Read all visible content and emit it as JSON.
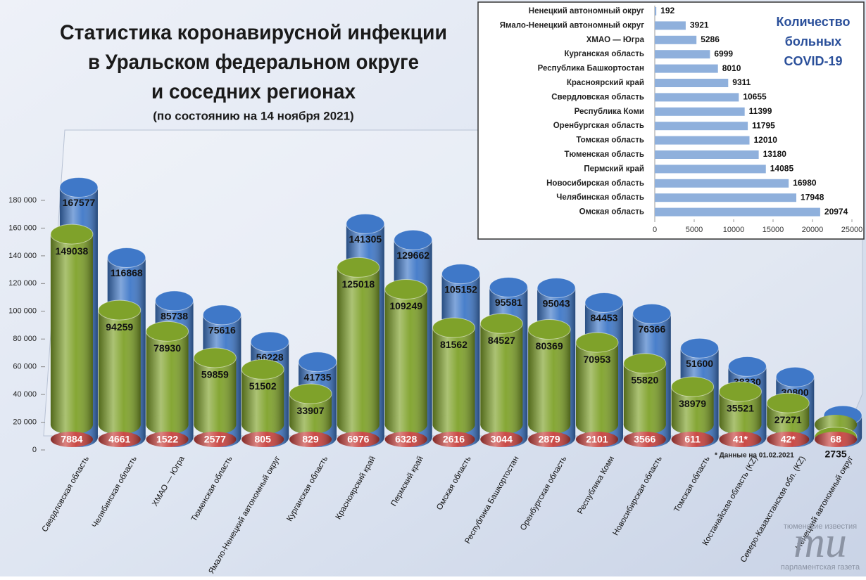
{
  "chart_data": [
    {
      "type": "bar",
      "title": [
        "Статистика коронавирусной инфекции",
        "в Уральском федеральном округе",
        "и соседних регионах"
      ],
      "subtitle": "(по состоянию на 14 ноября 2021)",
      "annotation": "* Данные на 01.02.2021",
      "categories": [
        "Свердловская область",
        "Челябинская область",
        "ХМАО — Югра",
        "Тюменская область",
        "Ямало-Ненецкий автономный округ",
        "Курганская область",
        "Красноярский край",
        "Пермский край",
        "Омская область",
        "Республика Башкортостан",
        "Оренбургская область",
        "Республика Коми",
        "Новосибирская область",
        "Томская область",
        "Костанайская область (KZ)",
        "Северо-Казахстанская обл. (KZ)",
        "Ненецкий автономный округ"
      ],
      "series": [
        {
          "color": "#3f78c8",
          "values": [
            167577,
            116868,
            85738,
            75616,
            56228,
            41735,
            141305,
            129662,
            105152,
            95581,
            95043,
            84453,
            76366,
            51600,
            38330,
            30800,
            2995
          ]
        },
        {
          "color": "#7fa22a",
          "values": [
            149038,
            94259,
            78930,
            59859,
            51502,
            33907,
            125018,
            109249,
            81562,
            84527,
            80369,
            70953,
            55820,
            38979,
            35521,
            27271,
            2735
          ]
        },
        {
          "color": "#c8403c",
          "values": [
            7884,
            4661,
            1522,
            2577,
            805,
            829,
            6976,
            6328,
            2616,
            3044,
            2879,
            2101,
            3566,
            611,
            41,
            42,
            68
          ],
          "value_labels": [
            "7884",
            "4661",
            "1522",
            "2577",
            "805",
            "829",
            "6976",
            "6328",
            "2616",
            "3044",
            "2879",
            "2101",
            "3566",
            "611",
            "41*",
            "42*",
            "68"
          ]
        }
      ],
      "ylim": [
        0,
        180000
      ],
      "yticks": [
        0,
        {
          "value": 20000,
          "label": "20 000"
        },
        {
          "value": 40000,
          "label": "40 000"
        },
        {
          "value": 60000,
          "label": "60 000"
        },
        {
          "value": 80000,
          "label": "80 000"
        },
        {
          "value": 100000,
          "label": "100 000"
        },
        {
          "value": 120000,
          "label": "120 000"
        },
        {
          "value": 140000,
          "label": "140 000"
        },
        {
          "value": 160000,
          "label": "160 000"
        },
        {
          "value": 180000,
          "label": "180 000"
        }
      ]
    },
    {
      "type": "bar",
      "orientation": "horizontal",
      "title": [
        "Количество",
        "больных",
        "COVID-19"
      ],
      "categories": [
        "Ненецкий автономный округ",
        "Ямало-Ненецкий автономный округ",
        "ХМАО — Югра",
        "Курганская область",
        "Республика Башкортостан",
        "Красноярский край",
        "Свердловская область",
        "Республика Коми",
        "Оренбургская область",
        "Томская область",
        "Тюменская область",
        "Пермский край",
        "Новосибирская область",
        "Челябинская область",
        "Омская область"
      ],
      "values": [
        192,
        3921,
        5286,
        6999,
        8010,
        9311,
        10655,
        11399,
        11795,
        12010,
        13180,
        14085,
        16980,
        17948,
        20974
      ],
      "color": "#8fb0dc",
      "xlim": [
        0,
        25000
      ],
      "xticks": [
        0,
        5000,
        10000,
        15000,
        20000,
        25000
      ]
    }
  ],
  "logo": {
    "top": "тюменские известия",
    "mark": "ти",
    "bottom": "парламентская газета"
  }
}
